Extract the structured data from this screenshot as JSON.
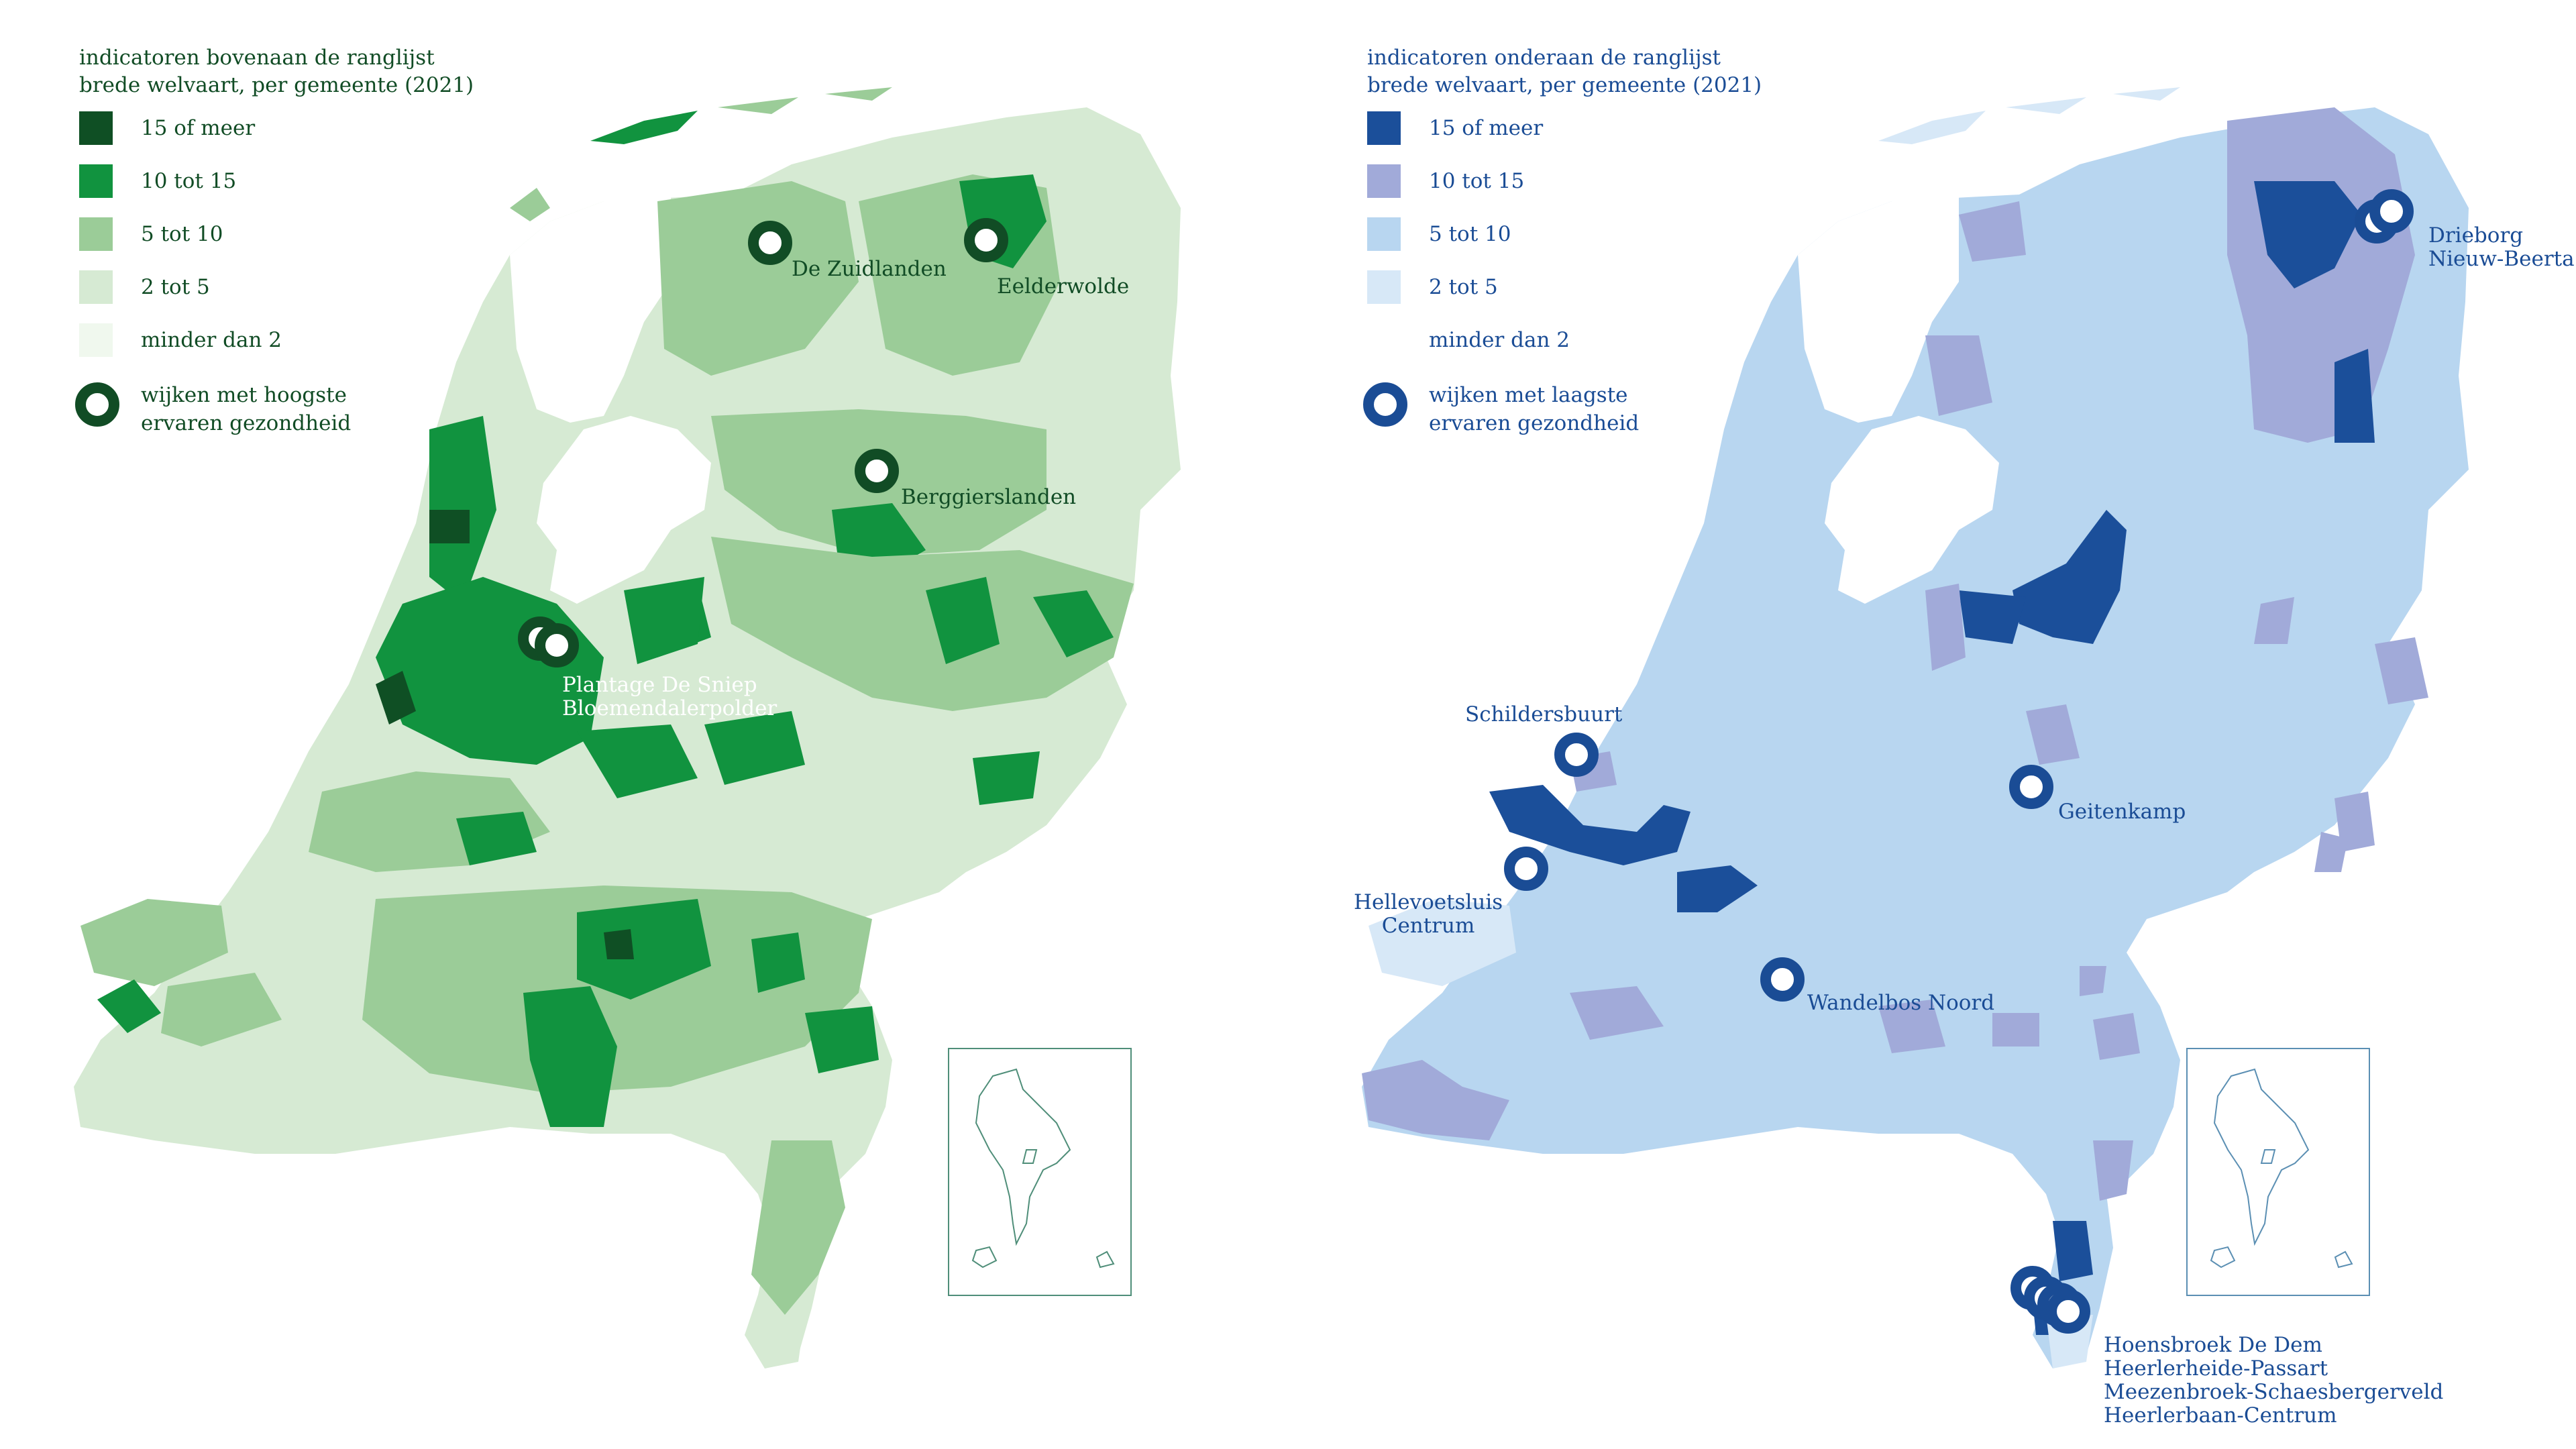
{
  "colors": {
    "green_1": "#0f4f24",
    "green_2": "#11933f",
    "green_3": "#9bcc98",
    "green_4": "#d6ead3",
    "green_5": "#f0f8ee",
    "green_text": "#114c25",
    "blue_1": "#1b4f9a",
    "blue_2": "#a1aad9",
    "blue_3": "#b8d6f0",
    "blue_4": "#d7e8f7",
    "blue_5": "#ffffff",
    "blue_text": "#1a4c95"
  },
  "left": {
    "title_line1": "indicatoren bovenaan de ranglijst",
    "title_line2": "brede welvaart, per gemeente (2021)",
    "legend": [
      {
        "label": "15 of meer",
        "color": "#0f4f24"
      },
      {
        "label": "10 tot 15",
        "color": "#11933f"
      },
      {
        "label": "5 tot 10",
        "color": "#9bcc98"
      },
      {
        "label": "2 tot 5",
        "color": "#d6ead3"
      },
      {
        "label": "minder dan 2",
        "color": "#f0f8ee"
      }
    ],
    "ring_label_line1": "wijken met hoogste",
    "ring_label_line2": "ervaren gezondheid",
    "callouts": {
      "zuidlanden": "De Zuidlanden",
      "eelderwolde": "Eelderwolde",
      "berggierslanden": "Berggierslanden",
      "plantage_line1": "Plantage De Sniep",
      "plantage_line2": "Bloemendalerpolder"
    }
  },
  "right": {
    "title_line1": "indicatoren onderaan de ranglijst",
    "title_line2": "brede welvaart, per gemeente (2021)",
    "legend": [
      {
        "label": "15 of meer",
        "color": "#1b4f9a"
      },
      {
        "label": "10 tot 15",
        "color": "#a1aad9"
      },
      {
        "label": "5 tot 10",
        "color": "#b8d6f0"
      },
      {
        "label": "2 tot 5",
        "color": "#d7e8f7"
      },
      {
        "label": "minder dan 2",
        "color": "#ffffff"
      }
    ],
    "ring_label_line1": "wijken met laagste",
    "ring_label_line2": "ervaren gezondheid",
    "callouts": {
      "drieborg": "Drieborg",
      "nieuw_beerta": "Nieuw-Beerta",
      "schildersbuurt": "Schildersbuurt",
      "geitenkamp": "Geitenkamp",
      "hellevoetsluis_line1": "Hellevoetsluis",
      "hellevoetsluis_line2": "Centrum",
      "wandelbos": "Wandelbos Noord",
      "limburg_line1": "Hoensbroek De Dem",
      "limburg_line2": "Heerlerheide-Passart",
      "limburg_line3": "Meezenbroek-Schaesbergerveld",
      "limburg_line4": "Heerlerbaan-Centrum"
    }
  }
}
